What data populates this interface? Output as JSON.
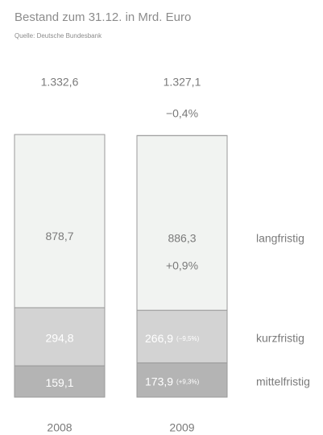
{
  "chart_data": {
    "type": "bar",
    "stacked": true,
    "title": "Bestand zum 31.12. in Mrd. Euro",
    "subtitle": "Quelle: Deutsche Bundesbank",
    "categories": [
      "2008",
      "2009"
    ],
    "totals": [
      1332.6,
      1327.1
    ],
    "total_labels": [
      "1.332,6",
      "1.327,1"
    ],
    "total_change_labels": [
      null,
      "−0,4%"
    ],
    "series": [
      {
        "name": "mittelfristig",
        "color": "#b4b4b4",
        "values": [
          159.1,
          173.9
        ],
        "value_labels": [
          "159,1",
          "173,9"
        ],
        "change_labels": [
          null,
          "(+9,3%)"
        ]
      },
      {
        "name": "kurzfristig",
        "color": "#d3d3d3",
        "values": [
          294.8,
          266.9
        ],
        "value_labels": [
          "294,8",
          "266,9"
        ],
        "change_labels": [
          null,
          "(−9,5%)"
        ]
      },
      {
        "name": "langfristig",
        "color": "#f1f3f1",
        "values": [
          878.7,
          886.3
        ],
        "value_labels": [
          "878,7",
          "886,3"
        ],
        "change_labels": [
          null,
          "+0,9%"
        ]
      }
    ]
  }
}
